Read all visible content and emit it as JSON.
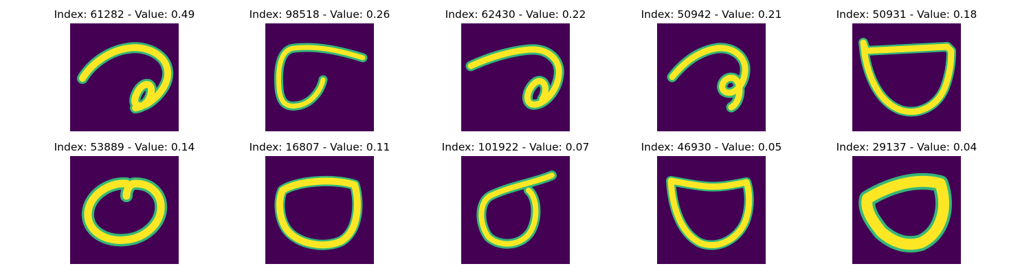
{
  "colors": {
    "background": "#440154",
    "mid": "#35b779",
    "stroke": "#fde725",
    "edge": "#21918c"
  },
  "panels": [
    {
      "index": "61282",
      "value": "0.49",
      "title": "Index: 61282 - Value: 0.49",
      "digit_shape": "hooked-loop"
    },
    {
      "index": "98518",
      "value": "0.26",
      "title": "Index: 98518 - Value: 0.26",
      "digit_shape": "open-hook"
    },
    {
      "index": "62430",
      "value": "0.22",
      "title": "Index: 62430 - Value: 0.22",
      "digit_shape": "hooked-loop"
    },
    {
      "index": "50942",
      "value": "0.21",
      "title": "Index: 50942 - Value: 0.21",
      "digit_shape": "hooked-loop"
    },
    {
      "index": "50931",
      "value": "0.18",
      "title": "Index: 50931 - Value: 0.18",
      "digit_shape": "cup"
    },
    {
      "index": "53889",
      "value": "0.14",
      "title": "Index: 53889 - Value: 0.14",
      "digit_shape": "oval"
    },
    {
      "index": "16807",
      "value": "0.11",
      "title": "Index: 16807 - Value: 0.11",
      "digit_shape": "oval"
    },
    {
      "index": "101922",
      "value": "0.07",
      "title": "Index: 101922 - Value: 0.07",
      "digit_shape": "looped-six"
    },
    {
      "index": "46930",
      "value": "0.05",
      "title": "Index: 46930 - Value: 0.05",
      "digit_shape": "cup"
    },
    {
      "index": "29137",
      "value": "0.04",
      "title": "Index: 29137 - Value: 0.04",
      "digit_shape": "thick-oval"
    }
  ]
}
